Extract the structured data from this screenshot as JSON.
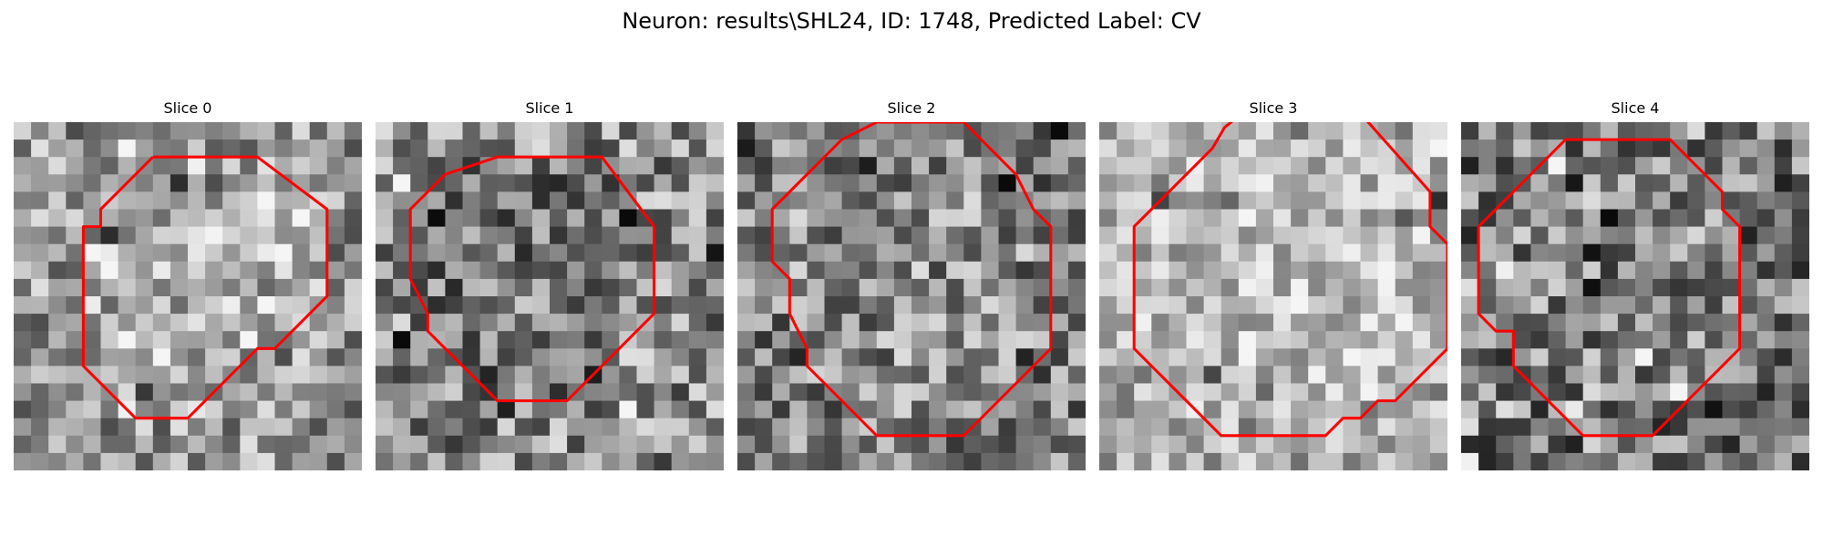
{
  "figure": {
    "title": "Neuron: results\\SHL24, ID: 1748, Predicted Label: CV",
    "contour_color": "#ff0000"
  },
  "slices": [
    {
      "title": "Slice 0",
      "contour": [
        [
          8,
          2
        ],
        [
          14,
          2
        ],
        [
          18,
          5
        ],
        [
          18,
          10
        ],
        [
          15,
          13
        ],
        [
          14,
          13
        ],
        [
          10,
          17
        ],
        [
          7,
          17
        ],
        [
          4,
          14
        ],
        [
          4,
          6
        ],
        [
          5,
          6
        ],
        [
          5,
          5
        ],
        [
          8,
          2
        ]
      ]
    },
    {
      "title": "Slice 1",
      "contour": [
        [
          7,
          2
        ],
        [
          13,
          2
        ],
        [
          16,
          6
        ],
        [
          16,
          11
        ],
        [
          13,
          14
        ],
        [
          12,
          15
        ],
        [
          11,
          16
        ],
        [
          7,
          16
        ],
        [
          3,
          12
        ],
        [
          3,
          11
        ],
        [
          2,
          9
        ],
        [
          2,
          5
        ],
        [
          4,
          3
        ],
        [
          7,
          2
        ]
      ]
    },
    {
      "title": "Slice 2",
      "contour": [
        [
          8,
          0
        ],
        [
          13,
          0
        ],
        [
          16,
          3
        ],
        [
          17,
          5
        ],
        [
          18,
          6
        ],
        [
          18,
          13
        ],
        [
          13,
          18
        ],
        [
          8,
          18
        ],
        [
          4,
          14
        ],
        [
          4,
          13
        ],
        [
          3,
          11
        ],
        [
          3,
          9
        ],
        [
          2,
          8
        ],
        [
          2,
          5
        ],
        [
          5,
          2
        ],
        [
          6,
          1
        ],
        [
          8,
          0
        ]
      ]
    },
    {
      "title": "Slice 3",
      "contour": [
        [
          15,
          -0.5
        ],
        [
          19,
          4
        ],
        [
          19,
          6
        ],
        [
          20,
          7
        ],
        [
          20,
          13
        ],
        [
          17,
          16
        ],
        [
          16,
          16
        ],
        [
          15,
          17
        ],
        [
          14,
          17
        ],
        [
          13,
          18
        ],
        [
          7,
          18
        ],
        [
          4,
          15
        ],
        [
          3,
          14
        ],
        [
          2,
          13
        ],
        [
          2,
          6
        ],
        [
          5,
          3
        ],
        [
          6,
          2
        ],
        [
          6.5,
          1.5
        ],
        [
          7.2,
          0.3
        ],
        [
          8.2,
          -0.5
        ]
      ]
    },
    {
      "title": "Slice 4",
      "contour": [
        [
          6,
          1
        ],
        [
          12,
          1
        ],
        [
          15,
          4
        ],
        [
          15,
          5
        ],
        [
          16,
          6
        ],
        [
          16,
          13
        ],
        [
          15,
          14
        ],
        [
          13,
          16
        ],
        [
          11,
          18
        ],
        [
          7,
          18
        ],
        [
          4,
          15
        ],
        [
          3,
          14
        ],
        [
          3,
          12
        ],
        [
          2,
          12
        ],
        [
          1,
          11
        ],
        [
          1,
          6
        ],
        [
          4,
          3
        ],
        [
          6,
          1
        ]
      ]
    }
  ]
}
